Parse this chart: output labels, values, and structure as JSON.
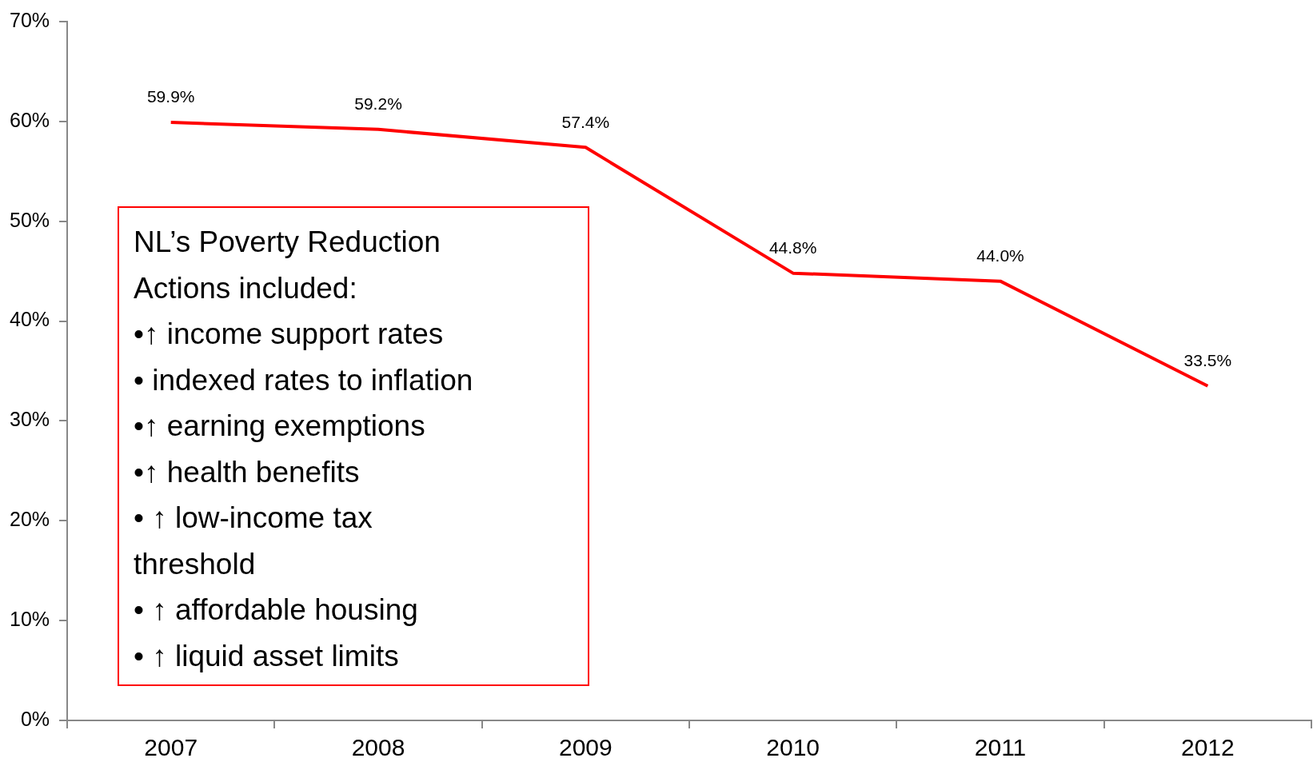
{
  "chart_data": {
    "type": "line",
    "categories": [
      "2007",
      "2008",
      "2009",
      "2010",
      "2011",
      "2012"
    ],
    "series": [
      {
        "color": "#ff0000",
        "values": [
          59.9,
          59.2,
          57.4,
          44.8,
          44.0,
          33.5
        ],
        "value_labels": [
          "59.9%",
          "59.2%",
          "57.4%",
          "44.8%",
          "44.0%",
          "33.5%"
        ]
      }
    ],
    "ylim": [
      0,
      70
    ],
    "yticks": [
      {
        "value": 0,
        "label": "0%"
      },
      {
        "value": 10,
        "label": "10%"
      },
      {
        "value": 20,
        "label": "20%"
      },
      {
        "value": 30,
        "label": "30%"
      },
      {
        "value": 40,
        "label": "40%"
      },
      {
        "value": 50,
        "label": "50%"
      },
      {
        "value": 60,
        "label": "60%"
      },
      {
        "value": 70,
        "label": "70%"
      }
    ],
    "grid": false,
    "legend": false,
    "marker": "none",
    "line_style": "solid",
    "annotations": [
      "NL’s Poverty Reduction\nActions included:\n•↑ income support rates\n• indexed rates to inflation\n•↑ earning exemptions\n•↑ health benefits\n• ↑ low-income tax\nthreshold\n• ↑ affordable housing\n• ↑ liquid asset limits"
    ]
  }
}
